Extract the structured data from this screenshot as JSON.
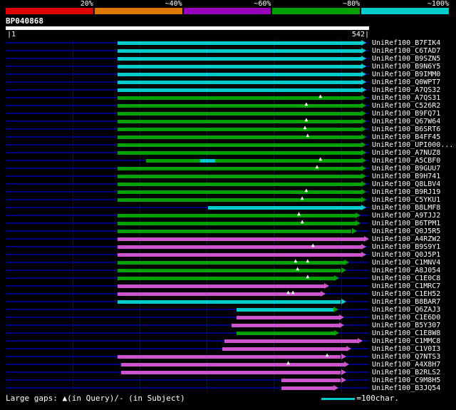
{
  "colors": {
    "cyan": "#00cccc",
    "green": "#00a000",
    "magenta": "#cc55cc",
    "baseline": "#000085",
    "query_bar": "#ffffff",
    "background": "#000000"
  },
  "footer": {
    "gaps_legend": "Large gaps: ▲(in Query)/- (in Subject)",
    "unit_legend": "=100char."
  },
  "chart_data": {
    "type": "bar",
    "subtype": "sequence-alignment-overview",
    "query": {
      "id": "BP040868",
      "length": 542,
      "ruler_left": "|1",
      "ruler_right": "542|"
    },
    "identity_legend": [
      {
        "label": "20%",
        "color": "#dd0000"
      },
      {
        "label": "~40%",
        "color": "#dd7700"
      },
      {
        "label": "~60%",
        "color": "#9900bb"
      },
      {
        "label": "~80%",
        "color": "#00a000"
      },
      {
        "label": "~100%",
        "color": "#00cccc"
      }
    ],
    "gridlines": [
      100,
      200,
      300,
      400,
      500
    ],
    "hits": [
      {
        "label": "UniRef100_B7FIK4",
        "color": "cyan",
        "start": 167,
        "end": 530,
        "gaps": []
      },
      {
        "label": "UniRef100_C6TAD7",
        "color": "cyan",
        "start": 167,
        "end": 530,
        "gaps": []
      },
      {
        "label": "UniRef100_B9SZN5",
        "color": "cyan",
        "start": 167,
        "end": 530,
        "gaps": []
      },
      {
        "label": "UniRef100_B9N6Y5",
        "color": "cyan",
        "start": 167,
        "end": 530,
        "gaps": []
      },
      {
        "label": "UniRef100_B9IMM0",
        "color": "cyan",
        "start": 167,
        "end": 530,
        "gaps": []
      },
      {
        "label": "UniRef100_Q0WPT7",
        "color": "cyan",
        "start": 167,
        "end": 530,
        "gaps": []
      },
      {
        "label": "UniRef100_A7QS32",
        "color": "cyan",
        "start": 167,
        "end": 530,
        "gaps": []
      },
      {
        "label": "UniRef100_A7QS31",
        "color": "green",
        "start": 167,
        "end": 530,
        "gaps": [
          470
        ]
      },
      {
        "label": "UniRef100_C526R2",
        "color": "green",
        "start": 167,
        "end": 530,
        "gaps": [
          449
        ]
      },
      {
        "label": "UniRef100_B9FQ71",
        "color": "green",
        "start": 167,
        "end": 530,
        "gaps": []
      },
      {
        "label": "UniRef100_Q67W64",
        "color": "green",
        "start": 167,
        "end": 530,
        "gaps": [
          449
        ]
      },
      {
        "label": "UniRef100_B6SRT6",
        "color": "green",
        "start": 167,
        "end": 530,
        "gaps": [
          447
        ]
      },
      {
        "label": "UniRef100_B4FF45",
        "color": "green",
        "start": 167,
        "end": 530,
        "gaps": [
          451
        ]
      },
      {
        "label": "UniRef100_UPI000...",
        "color": "green",
        "start": 167,
        "end": 530,
        "gaps": []
      },
      {
        "label": "UniRef100_A7NUZ8",
        "color": "green",
        "start": 167,
        "end": 530,
        "gaps": []
      },
      {
        "label": "UniRef100_A5CBF0",
        "color": "green",
        "start": 209,
        "end": 530,
        "gaps": [
          470
        ],
        "segments": [
          {
            "color": "green",
            "start": 209,
            "end": 290
          },
          {
            "color": "cyan",
            "start": 290,
            "end": 312
          },
          {
            "color": "green",
            "start": 312,
            "end": 530
          }
        ]
      },
      {
        "label": "UniRef100_B9GUU7",
        "color": "green",
        "start": 167,
        "end": 530,
        "gaps": [
          465
        ]
      },
      {
        "label": "UniRef100_B9H741",
        "color": "green",
        "start": 167,
        "end": 530,
        "gaps": []
      },
      {
        "label": "UniRef100_Q8LBV4",
        "color": "green",
        "start": 167,
        "end": 530,
        "gaps": []
      },
      {
        "label": "UniRef100_B9RJ19",
        "color": "green",
        "start": 167,
        "end": 530,
        "gaps": [
          449
        ]
      },
      {
        "label": "UniRef100_C5YKU1",
        "color": "green",
        "start": 167,
        "end": 530,
        "gaps": [
          443
        ]
      },
      {
        "label": "UniRef100_B8LMF8",
        "color": "cyan",
        "start": 302,
        "end": 530,
        "gaps": []
      },
      {
        "label": "UniRef100_A9TJJ2",
        "color": "green",
        "start": 167,
        "end": 522,
        "gaps": [
          438
        ]
      },
      {
        "label": "UniRef100_B6TPM1",
        "color": "green",
        "start": 167,
        "end": 522,
        "gaps": [
          443
        ]
      },
      {
        "label": "UniRef100_Q0J5R5",
        "color": "green",
        "start": 167,
        "end": 516,
        "gaps": []
      },
      {
        "label": "UniRef100_A4RZW2",
        "color": "magenta",
        "start": 167,
        "end": 535,
        "gaps": []
      },
      {
        "label": "UniRef100_B9S9Y1",
        "color": "magenta",
        "start": 167,
        "end": 530,
        "gaps": [
          459
        ]
      },
      {
        "label": "UniRef100_Q0J5P1",
        "color": "magenta",
        "start": 167,
        "end": 530,
        "gaps": []
      },
      {
        "label": "UniRef100_C1MNV4",
        "color": "green",
        "start": 167,
        "end": 505,
        "gaps": [
          433,
          451
        ]
      },
      {
        "label": "UniRef100_A8J054",
        "color": "green",
        "start": 167,
        "end": 500,
        "gaps": [
          436
        ]
      },
      {
        "label": "UniRef100_C1E0C8",
        "color": "green",
        "start": 167,
        "end": 490,
        "gaps": [
          451
        ]
      },
      {
        "label": "UniRef100_C1MRC7",
        "color": "magenta",
        "start": 167,
        "end": 475,
        "gaps": []
      },
      {
        "label": "UniRef100_C1EH52",
        "color": "magenta",
        "start": 167,
        "end": 470,
        "gaps": [
          422,
          429
        ]
      },
      {
        "label": "UniRef100_B8BAR7",
        "color": "cyan",
        "start": 167,
        "end": 500,
        "gaps": []
      },
      {
        "label": "UniRef100_Q6ZAJ3",
        "color": "cyan",
        "start": 344,
        "end": 489,
        "gaps": [],
        "arrow": "green"
      },
      {
        "label": "UniRef100_C1E6D0",
        "color": "magenta",
        "start": 344,
        "end": 497,
        "gaps": []
      },
      {
        "label": "UniRef100_B5Y307",
        "color": "magenta",
        "start": 337,
        "end": 497,
        "gaps": []
      },
      {
        "label": "UniRef100_C1E8W8",
        "color": "green",
        "start": 344,
        "end": 490,
        "gaps": []
      },
      {
        "label": "UniRef100_C1MMC8",
        "color": "magenta",
        "start": 326,
        "end": 525,
        "gaps": []
      },
      {
        "label": "UniRef100_C1V0I3",
        "color": "magenta",
        "start": 323,
        "end": 508,
        "gaps": []
      },
      {
        "label": "UniRef100_Q7NTS3",
        "color": "magenta",
        "start": 167,
        "end": 500,
        "gaps": [
          480
        ]
      },
      {
        "label": "UniRef100_A4X8H7",
        "color": "magenta",
        "start": 172,
        "end": 505,
        "gaps": [
          422
        ]
      },
      {
        "label": "UniRef100_B2RLS2",
        "color": "magenta",
        "start": 172,
        "end": 500,
        "gaps": []
      },
      {
        "label": "UniRef100_C9M8H5",
        "color": "magenta",
        "start": 411,
        "end": 500,
        "gaps": []
      },
      {
        "label": "UniRef100_B3JQ54",
        "color": "magenta",
        "start": 411,
        "end": 489,
        "gaps": []
      }
    ]
  }
}
